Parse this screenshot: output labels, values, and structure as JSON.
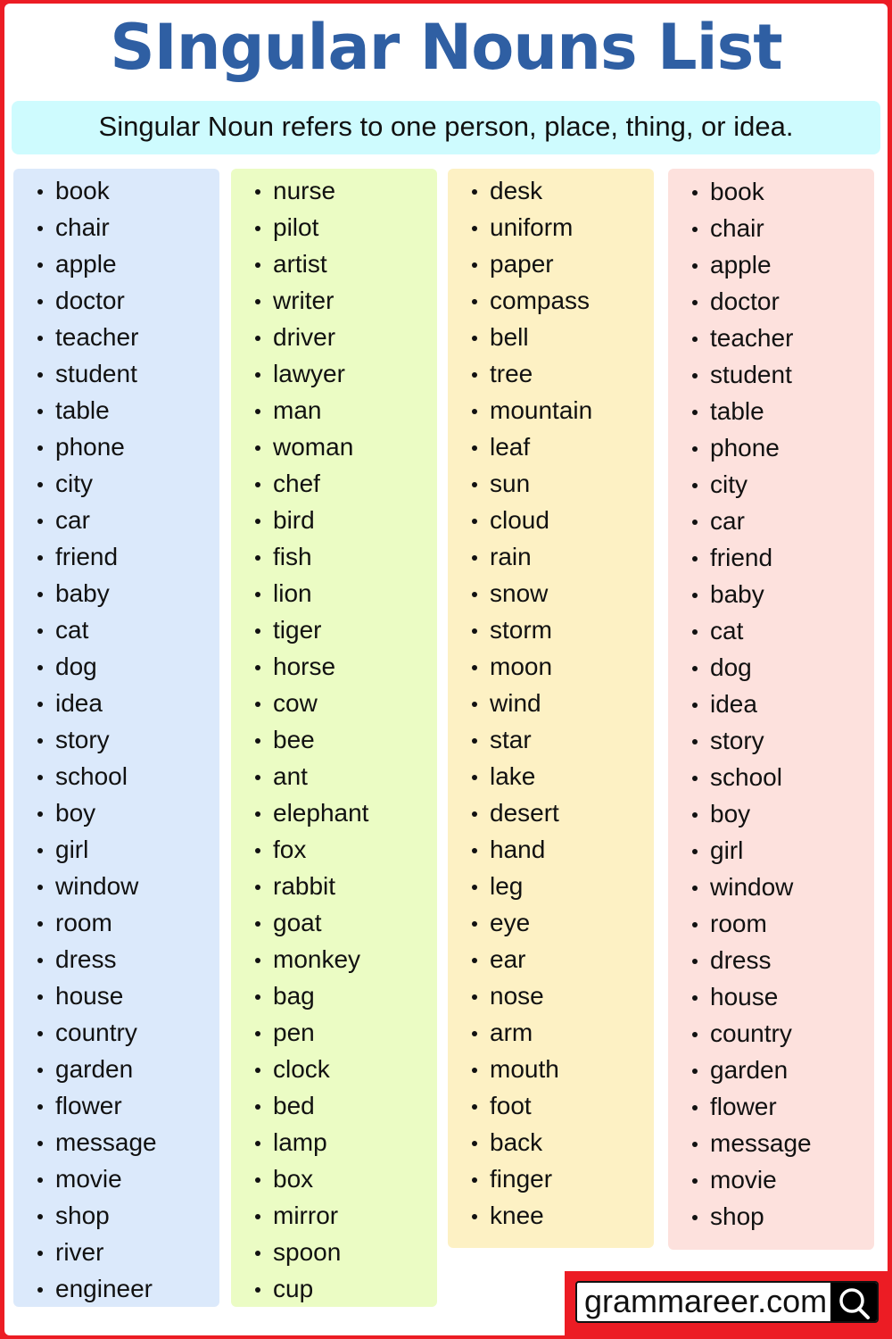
{
  "title": "SIngular Nouns List",
  "subtitle": "Singular Noun refers to one person, place, thing, or idea.",
  "colors": {
    "title": "#2f5fa3",
    "subtitle_bg": "#cefbfe",
    "border": "#ec1c24",
    "columns": [
      "#dbe9fb",
      "#ebfcc4",
      "#fdf1c4",
      "#fde1dd"
    ]
  },
  "columns": [
    [
      "book",
      "chair",
      "apple",
      "doctor",
      "teacher",
      "student",
      "table",
      "phone",
      "city",
      "car",
      "friend",
      "baby",
      "cat",
      "dog",
      "idea",
      "story",
      "school",
      "boy",
      "girl",
      "window",
      "room",
      "dress",
      "house",
      "country",
      "garden",
      "flower",
      "message",
      "movie",
      "shop",
      "river",
      "engineer"
    ],
    [
      "nurse",
      "pilot",
      "artist",
      "writer",
      "driver",
      "lawyer",
      "man",
      "woman",
      "chef",
      "bird",
      "fish",
      "lion",
      "tiger",
      "horse",
      "cow",
      "bee",
      "ant",
      "elephant",
      "fox",
      "rabbit",
      "goat",
      "monkey",
      "bag",
      "pen",
      "clock",
      "bed",
      "lamp",
      "box",
      "mirror",
      "spoon",
      "cup"
    ],
    [
      "desk",
      "uniform",
      "paper",
      "compass",
      "bell",
      "tree",
      "mountain",
      "leaf",
      "sun",
      "cloud",
      "rain",
      "snow",
      "storm",
      "moon",
      "wind",
      "star",
      "lake",
      "desert",
      "hand",
      "leg",
      "eye",
      "ear",
      "nose",
      "arm",
      "mouth",
      "foot",
      "back",
      "finger",
      "knee"
    ],
    [
      "book",
      "chair",
      "apple",
      "doctor",
      "teacher",
      "student",
      "table",
      "phone",
      "city",
      "car",
      "friend",
      "baby",
      "cat",
      "dog",
      "idea",
      "story",
      "school",
      "boy",
      "girl",
      "window",
      "room",
      "dress",
      "house",
      "country",
      "garden",
      "flower",
      "message",
      "movie",
      "shop"
    ]
  ],
  "logo": {
    "text": "grammareer.com",
    "icon": "search-icon"
  }
}
